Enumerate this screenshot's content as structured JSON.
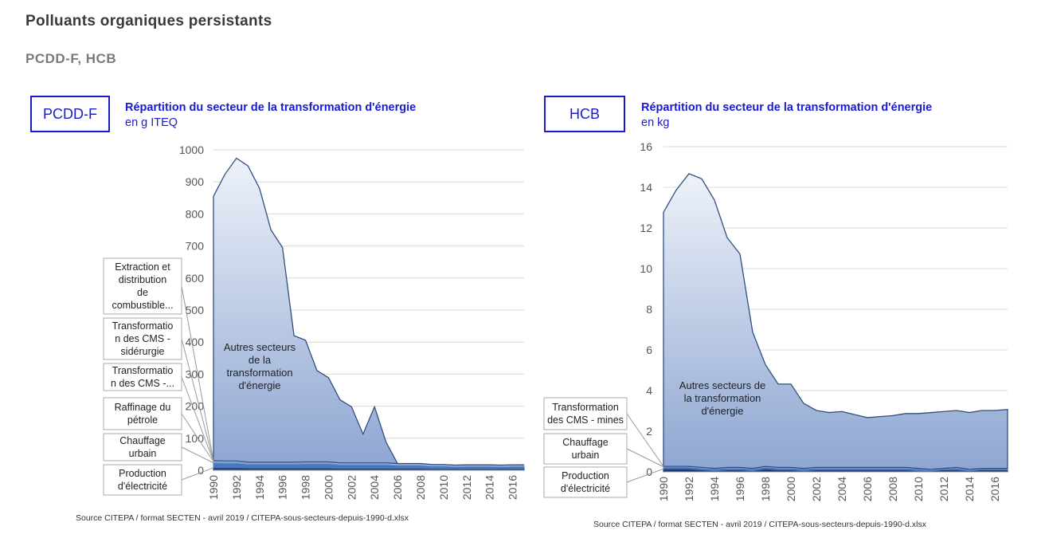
{
  "header": {
    "title": "Polluants organiques persistants",
    "subtitle": "PCDD-F, HCB"
  },
  "charts": [
    {
      "box_label": "PCDD-F",
      "title": "Répartition du secteur de la transformation d'énergie",
      "unit": "en g ITEQ",
      "source": "Source CITEPA / format SECTEN - avril 2019 / CITEPA-sous-secteurs-depuis-1990-d.xlsx"
    },
    {
      "box_label": "HCB",
      "title": "Répartition du secteur de la transformation d'énergie",
      "unit": "en kg",
      "source": "Source CITEPA / format SECTEN - avril 2019 / CITEPA-sous-secteurs-depuis-1990-d.xlsx"
    }
  ],
  "chart_data": [
    {
      "type": "area",
      "stacked": true,
      "ylim": [
        0,
        1000
      ],
      "yticks": [
        0,
        100,
        200,
        300,
        400,
        500,
        600,
        700,
        800,
        900,
        1000
      ],
      "x": [
        1990,
        1991,
        1992,
        1993,
        1994,
        1995,
        1996,
        1997,
        1998,
        1999,
        2000,
        2001,
        2002,
        2003,
        2004,
        2005,
        2006,
        2007,
        2008,
        2009,
        2010,
        2011,
        2012,
        2013,
        2014,
        2015,
        2016,
        2017
      ],
      "xticks": [
        "1990",
        "1992",
        "1994",
        "1996",
        "1998",
        "2000",
        "2002",
        "2004",
        "2006",
        "2008",
        "2010",
        "2012",
        "2014",
        "2016"
      ],
      "grid": true,
      "series": [
        {
          "name": "Production d'électricité",
          "color": "#1f3a6e",
          "values": [
            8,
            8,
            8,
            7,
            7,
            7,
            7,
            7,
            7,
            7,
            7,
            6,
            6,
            6,
            6,
            6,
            6,
            6,
            6,
            5,
            5,
            5,
            5,
            5,
            5,
            5,
            5,
            5
          ]
        },
        {
          "name": "Chauffage urbain",
          "color": "#4a78c0",
          "values": [
            15,
            14,
            14,
            12,
            12,
            12,
            12,
            12,
            13,
            13,
            13,
            11,
            11,
            11,
            11,
            11,
            9,
            9,
            9,
            8,
            8,
            6,
            7,
            7,
            7,
            6,
            7,
            7
          ]
        },
        {
          "name": "Raffinage du pétrole",
          "color": "#6f95cf",
          "values": [
            4,
            4,
            4,
            3,
            3,
            3,
            3,
            3,
            3,
            3,
            3,
            3,
            3,
            3,
            3,
            3,
            3,
            3,
            3,
            2,
            2,
            2,
            2,
            2,
            2,
            2,
            2,
            2
          ]
        },
        {
          "name": "Transformation des CMS -...",
          "color": "#8aaad8",
          "values": [
            1,
            1,
            1,
            1,
            1,
            1,
            1,
            1,
            1,
            1,
            1,
            1,
            1,
            1,
            1,
            1,
            1,
            1,
            1,
            1,
            1,
            1,
            1,
            1,
            1,
            1,
            1,
            1
          ]
        },
        {
          "name": "Transformation des CMS - sidérurgie",
          "color": "#a5bde2",
          "values": [
            1,
            1,
            1,
            1,
            1,
            1,
            1,
            1,
            1,
            1,
            1,
            1,
            1,
            1,
            1,
            1,
            1,
            1,
            1,
            1,
            1,
            1,
            1,
            1,
            1,
            1,
            1,
            1
          ]
        },
        {
          "name": "Extraction et distribution de combustible...",
          "color": "#c0d0ea",
          "values": [
            1,
            1,
            1,
            1,
            1,
            1,
            1,
            1,
            1,
            1,
            1,
            1,
            1,
            1,
            1,
            1,
            1,
            1,
            1,
            1,
            1,
            1,
            1,
            1,
            1,
            1,
            1,
            1
          ]
        },
        {
          "name": "Autres secteurs de la transformation d'énergie",
          "color": "#dbe3f0",
          "values": [
            825,
            895,
            945,
            925,
            855,
            725,
            670,
            395,
            380,
            285,
            263,
            197,
            175,
            90,
            175,
            65,
            0,
            0,
            0,
            0,
            0,
            0,
            0,
            0,
            0,
            0,
            0,
            0
          ]
        }
      ]
    },
    {
      "type": "area",
      "stacked": true,
      "ylim": [
        0,
        16
      ],
      "yticks": [
        0,
        2,
        4,
        6,
        8,
        10,
        12,
        14,
        16
      ],
      "x": [
        1990,
        1991,
        1992,
        1993,
        1994,
        1995,
        1996,
        1997,
        1998,
        1999,
        2000,
        2001,
        2002,
        2003,
        2004,
        2005,
        2006,
        2007,
        2008,
        2009,
        2010,
        2011,
        2012,
        2013,
        2014,
        2015,
        2016,
        2017
      ],
      "xticks": [
        "1990",
        "1992",
        "1994",
        "1996",
        "1998",
        "2000",
        "2002",
        "2004",
        "2006",
        "2008",
        "2010",
        "2012",
        "2014",
        "2016"
      ],
      "grid": true,
      "series": [
        {
          "name": "Production d'électricité",
          "color": "#1f3a6e",
          "values": [
            0.15,
            0.15,
            0.15,
            0.1,
            0.05,
            0.1,
            0.1,
            0.05,
            0.15,
            0.1,
            0.1,
            0.05,
            0.1,
            0.1,
            0.1,
            0.1,
            0.1,
            0.1,
            0.1,
            0.1,
            0.05,
            0.05,
            0.1,
            0.1,
            0.05,
            0.1,
            0.1,
            0.1
          ]
        },
        {
          "name": "Chauffage urbain",
          "color": "#4a78c0",
          "values": [
            0.1,
            0.1,
            0.1,
            0.1,
            0.1,
            0.1,
            0.1,
            0.1,
            0.1,
            0.1,
            0.1,
            0.1,
            0.1,
            0.1,
            0.1,
            0.1,
            0.1,
            0.1,
            0.1,
            0.1,
            0.1,
            0.05,
            0.05,
            0.1,
            0.05,
            0.05,
            0.05,
            0.05
          ]
        },
        {
          "name": "Transformation des CMS - mines",
          "color": "#c0d0ea",
          "values": [
            0.02,
            0.02,
            0.02,
            0.02,
            0.02,
            0.02,
            0.02,
            0.02,
            0.02,
            0.02,
            0.02,
            0.02,
            0.02,
            0.02,
            0.02,
            0.02,
            0.02,
            0.02,
            0.02,
            0.02,
            0.02,
            0.02,
            0.02,
            0.02,
            0.02,
            0.02,
            0.02,
            0.02
          ]
        },
        {
          "name": "Autres secteurs de la transformation d'énergie",
          "color": "#dbe3f0",
          "values": [
            12.5,
            13.6,
            14.4,
            14.2,
            13.2,
            11.3,
            10.5,
            6.7,
            5.0,
            4.1,
            4.1,
            3.2,
            2.8,
            2.7,
            2.75,
            2.6,
            2.45,
            2.5,
            2.55,
            2.65,
            2.7,
            2.8,
            2.8,
            2.8,
            2.8,
            2.85,
            2.85,
            2.9
          ]
        }
      ]
    }
  ]
}
